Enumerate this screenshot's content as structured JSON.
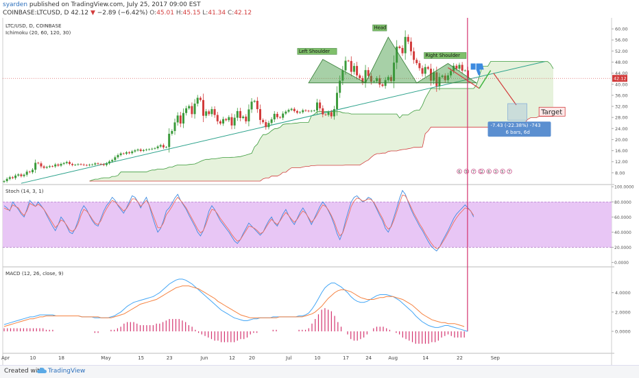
{
  "header": {
    "user": "syarden",
    "published_text": "published on TradingView.com, July 25, 2017 09:00 EST",
    "symbol": "COINBASE:LTCUSD, D",
    "last": "42.12",
    "arrow": "▼",
    "change": "−2.89 (−6.42%)",
    "o_label": "O:",
    "o": "45.01",
    "h_label": "H:",
    "h": "45.15",
    "l_label": "L:",
    "l": "41.34",
    "c_label": "C:",
    "c": "42.12"
  },
  "footer": {
    "created_with": "Created with",
    "brand": "TradingView"
  },
  "colors": {
    "up": "#3a9a3a",
    "down": "#d23b3b",
    "trend": "#2aa18a",
    "stoch_k": "#3d8be0",
    "stoch_d": "#ef6c5b",
    "macd": "#42a5f5",
    "signal": "#f5813f",
    "hist": "#d4336e",
    "cloud": "#e6f2dc",
    "stoch_band": "#e8c6f5"
  },
  "chart_data": [
    {
      "type": "candlestick",
      "title": "LTC/USD, D, COINBASE",
      "indicator": "Ichimoku (20, 60, 120, 30)",
      "x_tick_labels": [
        "Apr",
        "10",
        "18",
        "May",
        "15",
        "23",
        "Jun",
        "12",
        "20",
        "Jul",
        "10",
        "17",
        "24",
        "Aug",
        "14",
        "22",
        "Sep"
      ],
      "ylim": [
        4,
        63
      ],
      "y_ticks": [
        "60.00",
        "56.00",
        "52.00",
        "48.00",
        "44.00",
        "40.00",
        "36.00",
        "32.00",
        "28.00",
        "24.00",
        "20.00",
        "16.00",
        "12.00",
        "8.00"
      ],
      "last_price_label": "42.12",
      "trendline_value_range": [
        4.2,
        48.2
      ],
      "close": [
        5.0,
        5.8,
        6.4,
        6.1,
        7.0,
        7.4,
        6.8,
        7.3,
        8.4,
        8.2,
        9.1,
        11.6,
        11.4,
        10.3,
        9.8,
        10.1,
        10.4,
        10.3,
        11.0,
        10.6,
        11.2,
        11.5,
        11.9,
        11.2,
        10.8,
        10.9,
        11.1,
        11.0,
        10.8,
        10.7,
        10.9,
        11.0,
        11.4,
        11.2,
        11.1,
        10.8,
        11.4,
        12.1,
        12.6,
        13.6,
        14.4,
        15.0,
        14.9,
        15.4,
        15.1,
        15.7,
        16.1,
        16.4,
        15.9,
        16.2,
        16.4,
        16.5,
        16.7,
        16.9,
        17.5,
        18.0,
        17.2,
        17.3,
        22.1,
        23.1,
        26.2,
        28.7,
        25.8,
        29.6,
        31.3,
        32.1,
        29.2,
        33.0,
        35.1,
        34.3,
        28.6,
        30.2,
        29.2,
        31.0,
        28.9,
        26.6,
        25.8,
        27.4,
        27.0,
        28.1,
        25.1,
        27.9,
        30.3,
        27.8,
        28.3,
        26.6,
        30.9,
        33.7,
        34.0,
        31.0,
        27.1,
        26.3,
        24.5,
        26.0,
        27.3,
        29.3,
        28.1,
        27.9,
        29.4,
        30.1,
        30.7,
        31.1,
        30.3,
        29.7,
        29.9,
        30.6,
        30.4,
        30.2,
        30.4,
        30.5,
        33.4,
        31.3,
        29.1,
        28.9,
        29.9,
        28.4,
        31.0,
        36.9,
        41.3,
        45.0,
        48.5,
        48.4,
        44.5,
        46.6,
        43.2,
        42.2,
        40.6,
        45.1,
        43.0,
        40.9,
        41.1,
        42.2,
        39.9,
        39.4,
        41.5,
        42.6,
        41.2,
        47.8,
        53.6,
        53.1,
        51.2,
        57.1,
        55.4,
        51.9,
        48.8,
        47.6,
        45.8,
        43.8,
        46.2,
        45.6,
        41.3,
        44.3,
        39.3,
        42.6,
        43.1,
        41.5,
        43.2,
        44.8,
        46.7,
        45.6,
        47.0,
        44.9,
        45.0,
        42.1
      ],
      "annotations": [
        "Left Shoulder",
        "Head",
        "Right Shoulder",
        "Target"
      ],
      "measure": {
        "change": "-7.43 (-22.38%) -743",
        "bars": "6 bars, 6d"
      },
      "event_marks": [
        "6",
        "5",
        "7",
        "8",
        "2",
        "6",
        "3",
        "5",
        "7"
      ]
    },
    {
      "type": "line",
      "title": "Stoch (14, 3, 1)",
      "ylim": [
        -5,
        102
      ],
      "y_ticks": [
        "100.0000",
        "80.0000",
        "60.0000",
        "40.0000",
        "20.0000",
        "0.0000"
      ],
      "band": [
        20,
        80
      ],
      "series": [
        {
          "values": [
            75,
            72,
            68,
            80,
            75,
            70,
            64,
            60,
            70,
            82,
            78,
            74,
            80,
            75,
            70,
            62,
            55,
            48,
            42,
            50,
            60,
            55,
            48,
            40,
            38,
            45,
            55,
            68,
            75,
            70,
            62,
            55,
            50,
            48,
            58,
            68,
            75,
            80,
            86,
            82,
            75,
            70,
            65,
            72,
            80,
            88,
            86,
            80,
            72,
            80,
            86,
            75,
            62,
            50,
            40,
            45,
            55,
            68,
            72,
            78,
            85,
            90,
            82,
            76,
            70,
            62,
            55,
            48,
            40,
            35,
            42,
            55,
            68,
            75,
            70,
            62,
            55,
            50,
            45,
            40,
            34,
            28,
            25,
            30,
            38,
            45,
            52,
            48,
            44,
            40,
            36,
            40,
            48,
            55,
            60,
            52,
            48,
            56,
            64,
            70,
            62,
            55,
            50,
            58,
            66,
            72,
            66,
            58,
            50,
            58,
            66,
            74,
            80,
            75,
            68,
            60,
            50,
            38,
            30,
            40,
            55,
            68,
            80,
            86,
            88,
            84,
            80,
            82,
            86,
            84,
            78,
            70,
            62,
            55,
            45,
            40,
            48,
            60,
            72,
            85,
            95,
            90,
            80,
            70,
            62,
            55,
            48,
            42,
            35,
            28,
            22,
            18,
            15,
            20,
            28,
            35,
            42,
            50,
            58,
            64,
            68,
            72,
            76,
            72,
            68,
            60
          ]
        },
        {
          "values": [
            72,
            70,
            69,
            76,
            74,
            72,
            66,
            62,
            68,
            78,
            76,
            74,
            77,
            74,
            70,
            64,
            58,
            52,
            46,
            50,
            56,
            54,
            49,
            43,
            41,
            44,
            51,
            62,
            70,
            68,
            63,
            57,
            52,
            50,
            55,
            64,
            71,
            77,
            82,
            80,
            76,
            72,
            68,
            71,
            77,
            84,
            84,
            80,
            74,
            78,
            82,
            76,
            66,
            56,
            46,
            46,
            52,
            63,
            68,
            74,
            81,
            86,
            82,
            77,
            72,
            65,
            58,
            51,
            44,
            39,
            42,
            51,
            62,
            70,
            69,
            64,
            58,
            53,
            48,
            43,
            37,
            32,
            28,
            30,
            36,
            42,
            48,
            47,
            45,
            42,
            38,
            40,
            46,
            52,
            57,
            53,
            50,
            55,
            61,
            66,
            62,
            57,
            53,
            57,
            63,
            68,
            65,
            59,
            53,
            57,
            63,
            70,
            76,
            74,
            69,
            62,
            54,
            43,
            35,
            39,
            50,
            62,
            74,
            81,
            85,
            84,
            81,
            82,
            84,
            83,
            79,
            72,
            65,
            58,
            49,
            44,
            47,
            56,
            67,
            79,
            89,
            88,
            81,
            73,
            65,
            58,
            51,
            45,
            38,
            32,
            26,
            21,
            18,
            20,
            26,
            32,
            39,
            46,
            53,
            59,
            64,
            68,
            72,
            71,
            68,
            62
          ]
        }
      ]
    },
    {
      "type": "line",
      "title": "MACD (12, 26, close, 9)",
      "ylim": [
        -2.2,
        6.6
      ],
      "y_ticks": [
        "4.0000",
        "2.0000",
        "0.0000"
      ],
      "series": [
        {
          "name": "MACD",
          "values": [
            0.7,
            0.8,
            0.9,
            1.0,
            1.1,
            1.2,
            1.3,
            1.4,
            1.5,
            1.5,
            1.6,
            1.7,
            1.7,
            1.7,
            1.7,
            1.7,
            1.6,
            1.6,
            1.6,
            1.6,
            1.6,
            1.6,
            1.6,
            1.6,
            1.5,
            1.5,
            1.5,
            1.5,
            1.4,
            1.4,
            1.4,
            1.4,
            1.4,
            1.5,
            1.6,
            1.8,
            2.0,
            2.3,
            2.6,
            2.8,
            3.0,
            3.1,
            3.2,
            3.3,
            3.4,
            3.5,
            3.6,
            3.8,
            4.0,
            4.3,
            4.6,
            4.9,
            5.1,
            5.3,
            5.4,
            5.4,
            5.3,
            5.1,
            4.9,
            4.6,
            4.3,
            4.0,
            3.7,
            3.4,
            3.1,
            2.8,
            2.5,
            2.2,
            2.0,
            1.8,
            1.6,
            1.4,
            1.3,
            1.2,
            1.1,
            1.1,
            1.2,
            1.3,
            1.3,
            1.4,
            1.4,
            1.4,
            1.4,
            1.5,
            1.5,
            1.5,
            1.5,
            1.5,
            1.5,
            1.5,
            1.5,
            1.6,
            1.6,
            1.7,
            1.9,
            2.3,
            2.8,
            3.4,
            4.0,
            4.5,
            4.8,
            5.0,
            5.0,
            4.8,
            4.6,
            4.3,
            4.0,
            3.6,
            3.3,
            3.1,
            3.0,
            3.0,
            3.1,
            3.3,
            3.5,
            3.7,
            3.8,
            3.8,
            3.8,
            3.7,
            3.6,
            3.4,
            3.2,
            2.9,
            2.6,
            2.3,
            2.0,
            1.6,
            1.3,
            1.0,
            0.8,
            0.6,
            0.5,
            0.4,
            0.4,
            0.5,
            0.6,
            0.6,
            0.5,
            0.4,
            0.3,
            0.2,
            0.1,
            0.0
          ]
        },
        {
          "name": "Signal",
          "values": [
            0.5,
            0.6,
            0.7,
            0.8,
            0.9,
            1.0,
            1.1,
            1.2,
            1.3,
            1.3,
            1.4,
            1.5,
            1.5,
            1.6,
            1.6,
            1.6,
            1.6,
            1.6,
            1.6,
            1.6,
            1.6,
            1.6,
            1.6,
            1.6,
            1.5,
            1.5,
            1.5,
            1.5,
            1.5,
            1.5,
            1.4,
            1.4,
            1.4,
            1.4,
            1.5,
            1.6,
            1.7,
            1.8,
            2.0,
            2.2,
            2.4,
            2.6,
            2.8,
            2.9,
            3.0,
            3.1,
            3.2,
            3.3,
            3.5,
            3.7,
            3.9,
            4.1,
            4.3,
            4.5,
            4.6,
            4.7,
            4.7,
            4.7,
            4.6,
            4.5,
            4.4,
            4.2,
            4.0,
            3.8,
            3.6,
            3.4,
            3.1,
            2.9,
            2.7,
            2.5,
            2.3,
            2.1,
            1.9,
            1.7,
            1.6,
            1.5,
            1.4,
            1.4,
            1.4,
            1.4,
            1.4,
            1.4,
            1.4,
            1.4,
            1.4,
            1.5,
            1.5,
            1.5,
            1.5,
            1.5,
            1.5,
            1.5,
            1.5,
            1.6,
            1.7,
            1.8,
            2.0,
            2.3,
            2.6,
            3.0,
            3.4,
            3.7,
            4.0,
            4.2,
            4.3,
            4.3,
            4.2,
            4.1,
            3.9,
            3.7,
            3.5,
            3.4,
            3.3,
            3.3,
            3.3,
            3.4,
            3.5,
            3.5,
            3.6,
            3.6,
            3.6,
            3.5,
            3.4,
            3.3,
            3.1,
            2.9,
            2.7,
            2.4,
            2.1,
            1.8,
            1.6,
            1.4,
            1.2,
            1.1,
            1.0,
            0.9,
            0.9,
            0.8,
            0.8,
            0.8,
            0.7,
            0.6,
            0.5
          ]
        }
      ]
    }
  ]
}
